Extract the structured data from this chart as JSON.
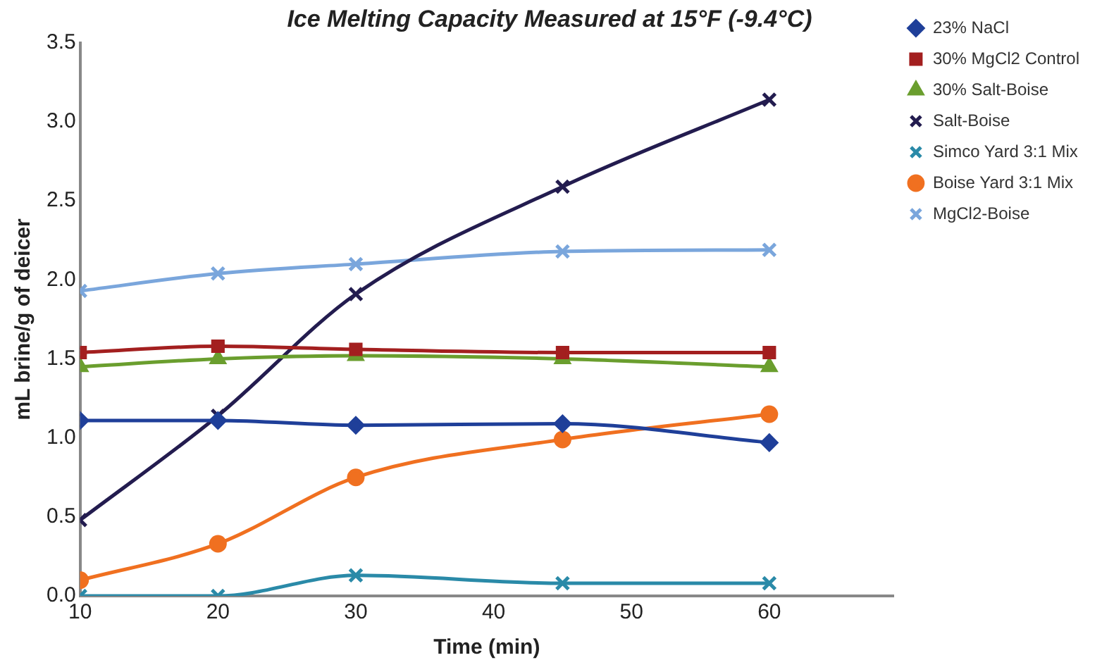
{
  "chart_data": {
    "type": "line",
    "title": "Ice Melting Capacity Measured at 15°F (-9.4°C)",
    "xlabel": "Time (min)",
    "ylabel": "mL brine/g of deicer",
    "x": [
      10,
      20,
      30,
      45,
      60
    ],
    "xlim": [
      10,
      69
    ],
    "xticks": [
      10,
      20,
      30,
      40,
      50,
      60
    ],
    "ylim": [
      0,
      3.5
    ],
    "yticks": [
      {
        "value": 0,
        "label": "0.0"
      },
      {
        "value": 0.5,
        "label": "0.5"
      },
      {
        "value": 1,
        "label": "1.0"
      },
      {
        "value": 1.5,
        "label": "1.5"
      },
      {
        "value": 2,
        "label": "2.0"
      },
      {
        "value": 2.5,
        "label": "2.5"
      },
      {
        "value": 3,
        "label": "3.0"
      },
      {
        "value": 3.5,
        "label": "3.5"
      }
    ],
    "grid": false,
    "legend": "right",
    "series": [
      {
        "name": "23% NaCl",
        "color": "#1f3f99",
        "marker": "diamond",
        "values": [
          1.11,
          1.11,
          1.08,
          1.09,
          0.97
        ]
      },
      {
        "name": "30% MgCl2 Control",
        "color": "#a31f1f",
        "marker": "square",
        "values": [
          1.54,
          1.58,
          1.56,
          1.54,
          1.54
        ]
      },
      {
        "name": "30% Salt-Boise",
        "color": "#6a9e2e",
        "marker": "triangle",
        "values": [
          1.45,
          1.5,
          1.52,
          1.5,
          1.45
        ]
      },
      {
        "name": "Salt-Boise",
        "color": "#231c4f",
        "marker": "cross",
        "values": [
          0.48,
          1.14,
          1.91,
          2.59,
          3.14
        ]
      },
      {
        "name": "Simco Yard 3:1 Mix",
        "color": "#2a8aa8",
        "marker": "cross",
        "values": [
          0,
          0,
          0.13,
          0.08,
          0.08
        ]
      },
      {
        "name": "Boise Yard 3:1 Mix",
        "color": "#f07020",
        "marker": "circle",
        "values": [
          0.1,
          0.33,
          0.75,
          0.99,
          1.15
        ]
      },
      {
        "name": "MgCl2-Boise",
        "color": "#7aa6dc",
        "marker": "cross",
        "values": [
          1.93,
          2.04,
          2.1,
          2.18,
          2.19
        ]
      }
    ]
  }
}
